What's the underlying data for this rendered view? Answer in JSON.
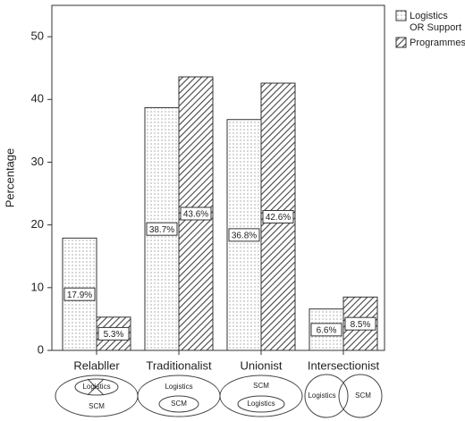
{
  "chart_data": {
    "type": "bar",
    "ylabel": "Percentage",
    "categories": [
      "Relabller",
      "Traditionalist",
      "Unionist",
      "Intersectionist"
    ],
    "series": [
      {
        "name": "Logistics OR Support",
        "values": [
          17.9,
          38.7,
          36.8,
          6.6
        ],
        "value_labels": [
          "17.9%",
          "38.7%",
          "36.8%",
          "6.6%"
        ]
      },
      {
        "name": "Programmes",
        "values": [
          5.3,
          43.6,
          42.6,
          8.5
        ],
        "value_labels": [
          "5.3%",
          "43.6%",
          "42.6%",
          "8.5%"
        ]
      }
    ],
    "ylim": [
      0,
      55
    ],
    "yticks": [
      0,
      10,
      20,
      30,
      40,
      50
    ],
    "diagrams": [
      {
        "labels": [
          "Logistics",
          "SCM"
        ]
      },
      {
        "labels": [
          "Logistics",
          "SCM"
        ]
      },
      {
        "labels": [
          "SCM",
          "Logistics"
        ]
      },
      {
        "labels": [
          "Logistics",
          "SCM"
        ]
      }
    ]
  }
}
